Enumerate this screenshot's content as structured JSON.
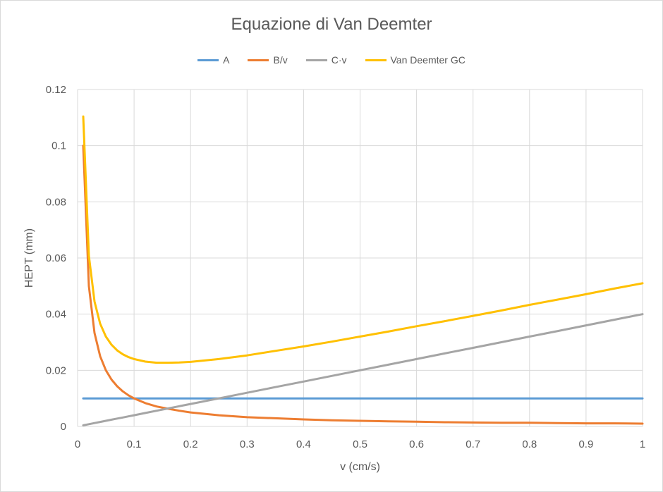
{
  "chart_data": {
    "type": "line",
    "title": "Equazione di Van Deemter",
    "xlabel": "v (cm/s)",
    "ylabel": "HEPT (mm)",
    "xlim": [
      0,
      1
    ],
    "ylim": [
      0,
      0.12
    ],
    "x_ticks": [
      "0",
      "0.1",
      "0.2",
      "0.3",
      "0.4",
      "0.5",
      "0.6",
      "0.7",
      "0.8",
      "0.9",
      "1"
    ],
    "y_ticks": [
      "0",
      "0.02",
      "0.04",
      "0.06",
      "0.08",
      "0.1",
      "0.12"
    ],
    "grid": true,
    "legend_position": "top",
    "x": [
      0.01,
      0.02,
      0.03,
      0.04,
      0.05,
      0.06,
      0.07,
      0.08,
      0.09,
      0.1,
      0.12,
      0.14,
      0.16,
      0.18,
      0.2,
      0.25,
      0.3,
      0.35,
      0.4,
      0.45,
      0.5,
      0.55,
      0.6,
      0.65,
      0.7,
      0.75,
      0.8,
      0.85,
      0.9,
      0.95,
      1.0
    ],
    "series": [
      {
        "name": "A",
        "color": "#5b9bd5",
        "values": [
          0.01,
          0.01,
          0.01,
          0.01,
          0.01,
          0.01,
          0.01,
          0.01,
          0.01,
          0.01,
          0.01,
          0.01,
          0.01,
          0.01,
          0.01,
          0.01,
          0.01,
          0.01,
          0.01,
          0.01,
          0.01,
          0.01,
          0.01,
          0.01,
          0.01,
          0.01,
          0.01,
          0.01,
          0.01,
          0.01,
          0.01
        ]
      },
      {
        "name": "B/v",
        "color": "#ed7d31",
        "values": [
          0.1,
          0.05,
          0.0333,
          0.025,
          0.02,
          0.0167,
          0.0143,
          0.0125,
          0.0111,
          0.01,
          0.0083,
          0.0071,
          0.0063,
          0.0056,
          0.005,
          0.004,
          0.0033,
          0.0029,
          0.0025,
          0.0022,
          0.002,
          0.0018,
          0.0017,
          0.0015,
          0.0014,
          0.0013,
          0.0013,
          0.0012,
          0.0011,
          0.0011,
          0.001
        ]
      },
      {
        "name": "C·v",
        "color": "#a5a5a5",
        "values": [
          0.0004,
          0.0008,
          0.0012,
          0.0016,
          0.002,
          0.0024,
          0.0028,
          0.0032,
          0.0036,
          0.004,
          0.0048,
          0.0056,
          0.0064,
          0.0072,
          0.008,
          0.01,
          0.012,
          0.014,
          0.016,
          0.018,
          0.02,
          0.022,
          0.024,
          0.026,
          0.028,
          0.03,
          0.032,
          0.034,
          0.036,
          0.038,
          0.04
        ]
      },
      {
        "name": "Van Deemter GC",
        "color": "#ffc000",
        "values": [
          0.1104,
          0.0608,
          0.0445,
          0.0366,
          0.032,
          0.0291,
          0.0271,
          0.0257,
          0.0247,
          0.024,
          0.0231,
          0.0227,
          0.0227,
          0.0228,
          0.023,
          0.024,
          0.0253,
          0.0269,
          0.0285,
          0.0302,
          0.032,
          0.0338,
          0.0357,
          0.0375,
          0.0394,
          0.0413,
          0.0433,
          0.0452,
          0.0471,
          0.0491,
          0.051
        ]
      }
    ]
  }
}
